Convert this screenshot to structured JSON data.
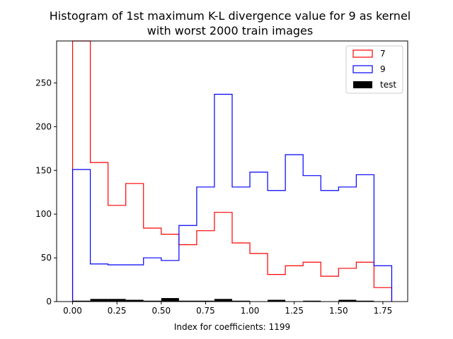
{
  "chart_data": {
    "type": "histogram",
    "title_line1": "Histogram of 1st maximum K-L divergence value for 9 as kernel",
    "title_line2": "with worst 2000 train images",
    "xlabel": "Index for coefficients: 1199",
    "ylabel": "",
    "xlim": [
      -0.09,
      1.89
    ],
    "ylim": [
      0,
      298
    ],
    "x_ticks": [
      "0.00",
      "0.25",
      "0.50",
      "0.75",
      "1.00",
      "1.25",
      "1.50",
      "1.75"
    ],
    "y_ticks": [
      "0",
      "50",
      "100",
      "150",
      "200",
      "250"
    ],
    "bin_edges": [
      0.0,
      0.1,
      0.2,
      0.3,
      0.4,
      0.5,
      0.6,
      0.7,
      0.8,
      0.9,
      1.0,
      1.1,
      1.2,
      1.3,
      1.4,
      1.5,
      1.6,
      1.7,
      1.8
    ],
    "grid": false,
    "legend_position": "top-right",
    "series": [
      {
        "name": "7",
        "style": "step",
        "color": "#ff0000",
        "counts": [
          298,
          159,
          110,
          135,
          84,
          77,
          65,
          81,
          102,
          67,
          55,
          31,
          41,
          45,
          29,
          38,
          45,
          16
        ]
      },
      {
        "name": "9",
        "style": "step",
        "color": "#0000ff",
        "counts": [
          151,
          43,
          42,
          42,
          50,
          47,
          87,
          131,
          237,
          131,
          148,
          127,
          168,
          144,
          127,
          131,
          145,
          41
        ]
      },
      {
        "name": "test",
        "style": "filled",
        "color": "#000000",
        "counts": [
          1,
          3,
          3,
          2,
          1,
          4,
          1,
          1,
          3,
          1,
          0,
          2,
          0,
          1,
          0,
          2,
          1,
          0
        ]
      }
    ]
  }
}
